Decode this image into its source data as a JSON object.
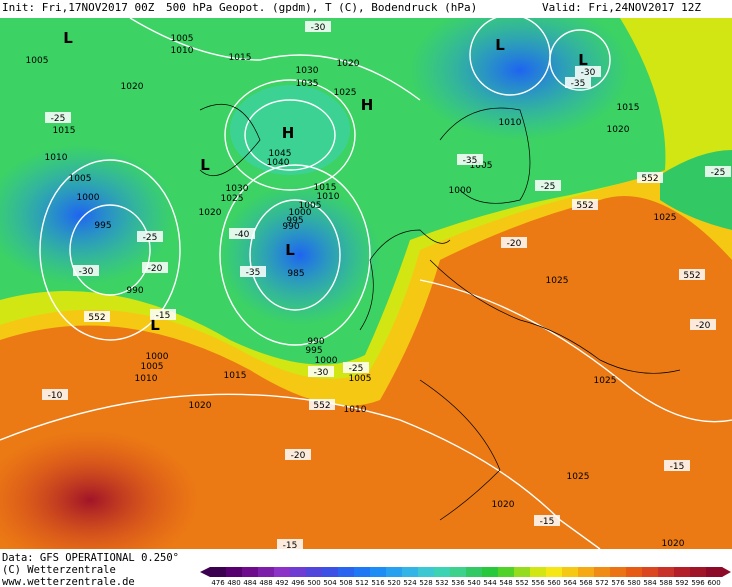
{
  "header": {
    "init": "Init: Fri,17NOV2017 00Z",
    "title": "500 hPa Geopot. (gpdm), T (C), Bodendruck (hPa)",
    "valid": "Valid: Fri,24NOV2017 12Z"
  },
  "footer": {
    "data": "Data: GFS OPERATIONAL 0.250°",
    "copyright": "(C) Wetterzentrale",
    "url": "www.wetterzentrale.de"
  },
  "scale": {
    "labels": [
      476,
      480,
      484,
      488,
      492,
      496,
      500,
      504,
      508,
      512,
      516,
      520,
      524,
      528,
      532,
      536,
      540,
      544,
      548,
      552,
      556,
      560,
      564,
      568,
      572,
      576,
      580,
      584,
      588,
      592,
      596,
      600
    ],
    "colors": [
      "#3c0050",
      "#55006e",
      "#6e0a8c",
      "#7d1eaa",
      "#8c32c8",
      "#6e3cd2",
      "#5046dc",
      "#3c50e6",
      "#2864f0",
      "#1e78f5",
      "#1e8cf5",
      "#28a0f0",
      "#32b4e6",
      "#3cc8d2",
      "#3cd2b4",
      "#3cd28c",
      "#32c864",
      "#28c83c",
      "#50d228",
      "#96dc1e",
      "#d2e614",
      "#f5e614",
      "#f5c814",
      "#f5aa14",
      "#f08c14",
      "#eb7314",
      "#e65a14",
      "#dc461e",
      "#c83228",
      "#b41e28",
      "#a01428",
      "#8c0a28"
    ]
  },
  "map": {
    "labels": [
      "L",
      "L",
      "L",
      "L",
      "L",
      "L",
      "H",
      "H",
      "1005",
      "1005",
      "1010",
      "1015",
      "1020",
      "1030",
      "1035",
      "1025",
      "1045",
      "1040",
      "1030",
      "1025",
      "1020",
      "1015",
      "1010",
      "1005",
      "1000",
      "995",
      "990",
      "985",
      "990",
      "995",
      "1000",
      "1005",
      "1010",
      "1015",
      "1020",
      "1000",
      "1005",
      "1010",
      "990",
      "995",
      "1000",
      "1005",
      "1010",
      "1015",
      "1020",
      "1010",
      "1005",
      "1000",
      "1015",
      "1020",
      "1025",
      "1025",
      "1025",
      "1025",
      "1020",
      "1020",
      "552",
      "552",
      "552",
      "552",
      "552",
      "-30",
      "-30",
      "-35",
      "-25",
      "-35",
      "-25",
      "-20",
      "-20",
      "-25",
      "-30",
      "-40",
      "-35",
      "-15",
      "-30",
      "-25",
      "-10",
      "-20",
      "-15",
      "-15",
      "-20",
      "-25",
      "-15"
    ]
  }
}
